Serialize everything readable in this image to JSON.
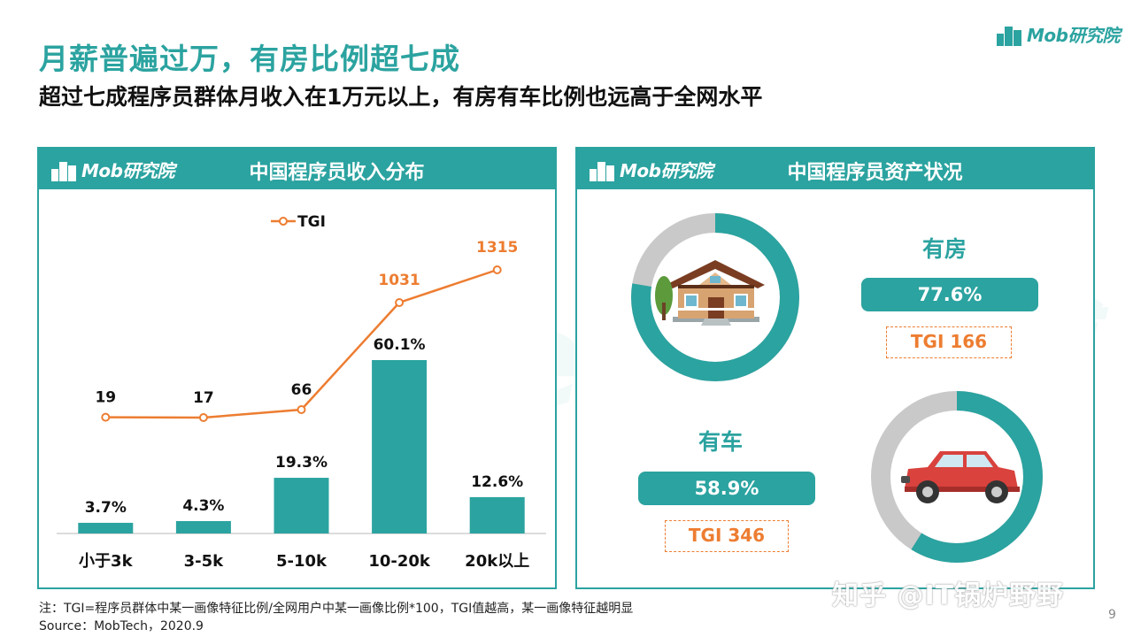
{
  "brand": {
    "logo_text": "Mob研究院",
    "color": "#2ba3a0",
    "accent": "#ed7d31"
  },
  "title": "月薪普遍过万，有房比例超七成",
  "subtitle": "超过七成程序员群体月收入在1万元以上，有房有车比例也远高于全网水平",
  "left_panel": {
    "title": "中国程序员收入分布"
  },
  "right_panel": {
    "title": "中国程序员资产状况"
  },
  "chart_data": {
    "type": "bar",
    "title": "中国程序员收入分布",
    "categories": [
      "小于3k",
      "3-5k",
      "5-10k",
      "10-20k",
      "20k以上"
    ],
    "series": [
      {
        "name": "",
        "type": "bar",
        "values": [
          3.7,
          4.3,
          19.3,
          60.1,
          12.6
        ],
        "labels": [
          "3.7%",
          "4.3%",
          "19.3%",
          "60.1%",
          "12.6%"
        ],
        "color": "#2ba3a0"
      },
      {
        "name": "TGI",
        "type": "line",
        "values": [
          19,
          17,
          66,
          1031,
          1315
        ],
        "labels": [
          "19",
          "17",
          "66",
          "1031",
          "1315"
        ],
        "color": "#ed7d31"
      }
    ],
    "legend": "top"
  },
  "assets": {
    "house": {
      "label": "有房",
      "value": 77.6,
      "value_text": "77.6%",
      "tgi_text": "TGI  166",
      "icon": "house-icon"
    },
    "car": {
      "label": "有车",
      "value": 58.9,
      "value_text": "58.9%",
      "tgi_text": "TGI   346",
      "icon": "car-icon"
    }
  },
  "watermark": "MobTech 袤博",
  "footer": {
    "note": "注：TGI=程序员群体中某一画像特征比例/全网用户中某一画像比例*100，TGI值越高，某一画像特征越明显",
    "source": "Source：MobTech，2020.9",
    "page": "9",
    "overlay": "知乎 @IT锅炉野野"
  }
}
